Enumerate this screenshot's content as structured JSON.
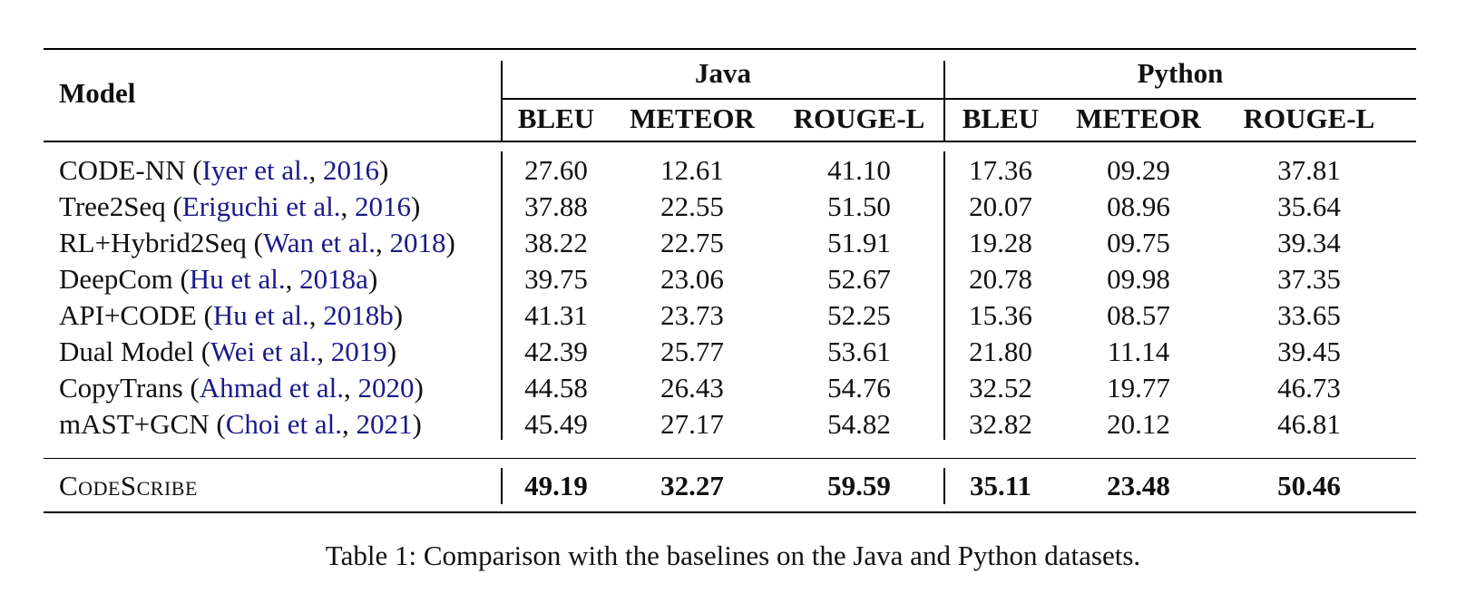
{
  "table": {
    "header": {
      "model_label": "Model",
      "groups": [
        {
          "name": "Java",
          "metrics": [
            "BLEU",
            "METEOR",
            "ROUGE-L"
          ]
        },
        {
          "name": "Python",
          "metrics": [
            "BLEU",
            "METEOR",
            "ROUGE-L"
          ]
        }
      ]
    },
    "rows": [
      {
        "model": "CODE-NN",
        "cite_open": "(",
        "cite_authors": "Iyer et al.",
        "cite_sep": ", ",
        "cite_year": "2016",
        "cite_close": ")",
        "values": [
          "27.60",
          "12.61",
          "41.10",
          "17.36",
          "09.29",
          "37.81"
        ]
      },
      {
        "model": "Tree2Seq",
        "cite_open": "(",
        "cite_authors": "Eriguchi et al.",
        "cite_sep": ", ",
        "cite_year": "2016",
        "cite_close": ")",
        "values": [
          "37.88",
          "22.55",
          "51.50",
          "20.07",
          "08.96",
          "35.64"
        ]
      },
      {
        "model": "RL+Hybrid2Seq",
        "cite_open": "(",
        "cite_authors": "Wan et al.",
        "cite_sep": ", ",
        "cite_year": "2018",
        "cite_close": ")",
        "values": [
          "38.22",
          "22.75",
          "51.91",
          "19.28",
          "09.75",
          "39.34"
        ]
      },
      {
        "model": "DeepCom",
        "cite_open": "(",
        "cite_authors": "Hu et al.",
        "cite_sep": ", ",
        "cite_year": "2018a",
        "cite_close": ")",
        "values": [
          "39.75",
          "23.06",
          "52.67",
          "20.78",
          "09.98",
          "37.35"
        ]
      },
      {
        "model": "API+CODE",
        "cite_open": "(",
        "cite_authors": "Hu et al.",
        "cite_sep": ", ",
        "cite_year": "2018b",
        "cite_close": ")",
        "values": [
          "41.31",
          "23.73",
          "52.25",
          "15.36",
          "08.57",
          "33.65"
        ]
      },
      {
        "model": "Dual Model",
        "cite_open": "(",
        "cite_authors": "Wei et al.",
        "cite_sep": ", ",
        "cite_year": "2019",
        "cite_close": ")",
        "values": [
          "42.39",
          "25.77",
          "53.61",
          "21.80",
          "11.14",
          "39.45"
        ]
      },
      {
        "model": "CopyTrans",
        "cite_open": "(",
        "cite_authors": "Ahmad et al.",
        "cite_sep": ", ",
        "cite_year": "2020",
        "cite_close": ")",
        "values": [
          "44.58",
          "26.43",
          "54.76",
          "32.52",
          "19.77",
          "46.73"
        ]
      },
      {
        "model": "mAST+GCN",
        "cite_open": "(",
        "cite_authors": "Choi et al.",
        "cite_sep": ", ",
        "cite_year": "2021",
        "cite_close": ")",
        "values": [
          "45.49",
          "27.17",
          "54.82",
          "32.82",
          "20.12",
          "46.81"
        ]
      }
    ],
    "final_row": {
      "model": "CodeScribe",
      "values": [
        "49.19",
        "32.27",
        "59.59",
        "35.11",
        "23.48",
        "50.46"
      ]
    }
  },
  "caption": "Table 1: Comparison with the baselines on the Java and Python datasets.",
  "colors": {
    "citation": "#1a1a8c",
    "text": "#111111"
  }
}
